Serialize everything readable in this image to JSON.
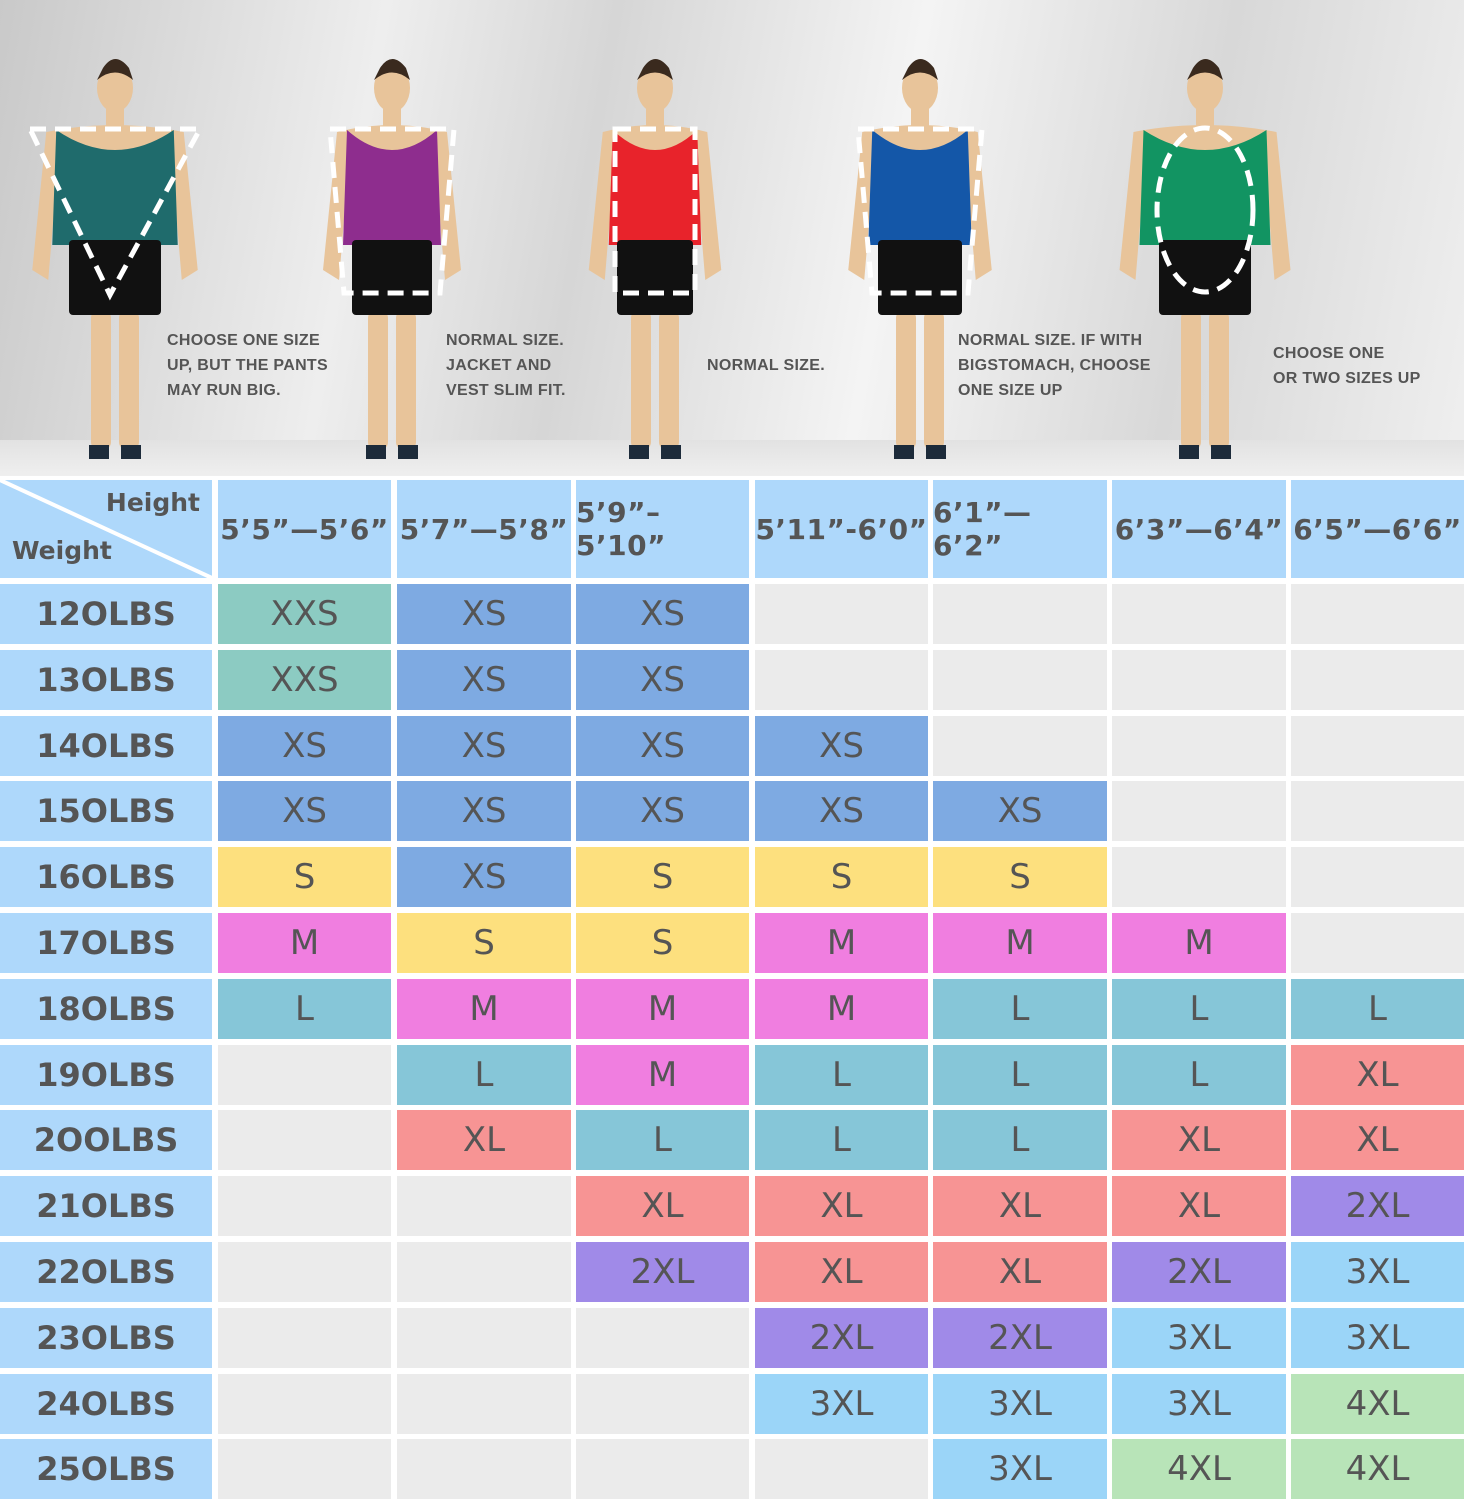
{
  "captions": [
    [
      "CHOOSE ONE SIZE",
      "UP, BUT THE PANTS",
      "MAY RUN BIG."
    ],
    [
      "NORMAL SIZE.",
      "JACKET AND",
      "VEST SLIM FIT."
    ],
    [
      "NORMAL SIZE."
    ],
    [
      "NORMAL SIZE. IF WITH",
      "BIGSTOMACH, CHOOSE",
      "ONE SIZE UP"
    ],
    [
      "CHOOSE ONE",
      "OR TWO SIZES UP"
    ]
  ],
  "figure_shirt_colors": [
    "#1f6b6c",
    "#8e2d8e",
    "#e8232b",
    "#1457a8",
    "#129462"
  ],
  "figure_outline_shapes": [
    "inverted-triangle",
    "trapezoid",
    "rectangle",
    "trapezoid",
    "oval"
  ],
  "table": {
    "corner_height_label": "Height",
    "corner_weight_label": "Weight",
    "heights": [
      "5’5”—5’6”",
      "5’7”—5’8”",
      "5’9”–5’10”",
      "5’11”-6’0”",
      "6’1”— 6’2”",
      "6’3”—6’4”",
      "6’5”—6’6”"
    ],
    "weights": [
      "12OLBS",
      "13OLBS",
      "14OLBS",
      "15OLBS",
      "16OLBS",
      "17OLBS",
      "18OLBS",
      "19OLBS",
      "2OOLBS",
      "21OLBS",
      "22OLBS",
      "23OLBS",
      "24OLBS",
      "25OLBS"
    ],
    "sizes": [
      [
        "XXS",
        "XS",
        "XS",
        "",
        "",
        "",
        ""
      ],
      [
        "XXS",
        "XS",
        "XS",
        "",
        "",
        "",
        ""
      ],
      [
        "XS",
        "XS",
        "XS",
        "XS",
        "",
        "",
        ""
      ],
      [
        "XS",
        "XS",
        "XS",
        "XS",
        "XS",
        "",
        ""
      ],
      [
        "S",
        "XS",
        "S",
        "S",
        "S",
        "",
        ""
      ],
      [
        "M",
        "S",
        "S",
        "M",
        "M",
        "M",
        ""
      ],
      [
        "L",
        "M",
        "M",
        "M",
        "L",
        "L",
        "L"
      ],
      [
        "",
        "L",
        "M",
        "L",
        "L",
        "L",
        "XL"
      ],
      [
        "",
        "XL",
        "L",
        "L",
        "L",
        "XL",
        "XL"
      ],
      [
        "",
        "",
        "XL",
        "XL",
        "XL",
        "XL",
        "2XL"
      ],
      [
        "",
        "",
        "2XL",
        "XL",
        "XL",
        "2XL",
        "3XL"
      ],
      [
        "",
        "",
        "",
        "2XL",
        "2XL",
        "3XL",
        "3XL"
      ],
      [
        "",
        "",
        "",
        "3XL",
        "3XL",
        "3XL",
        "4XL"
      ],
      [
        "",
        "",
        "",
        "",
        "3XL",
        "4XL",
        "4XL"
      ]
    ],
    "size_colors": {
      "XXS": "#8ccbc2",
      "XS": "#7eaae2",
      "S": "#fde07e",
      "M": "#f07ee0",
      "L": "#86c6d8",
      "XL": "#f79494",
      "2XL": "#a08ae8",
      "3XL": "#9bd5f8",
      "4XL": "#b8e4b8",
      "": "#ebebeb"
    },
    "header_color": "#aed8fb"
  }
}
